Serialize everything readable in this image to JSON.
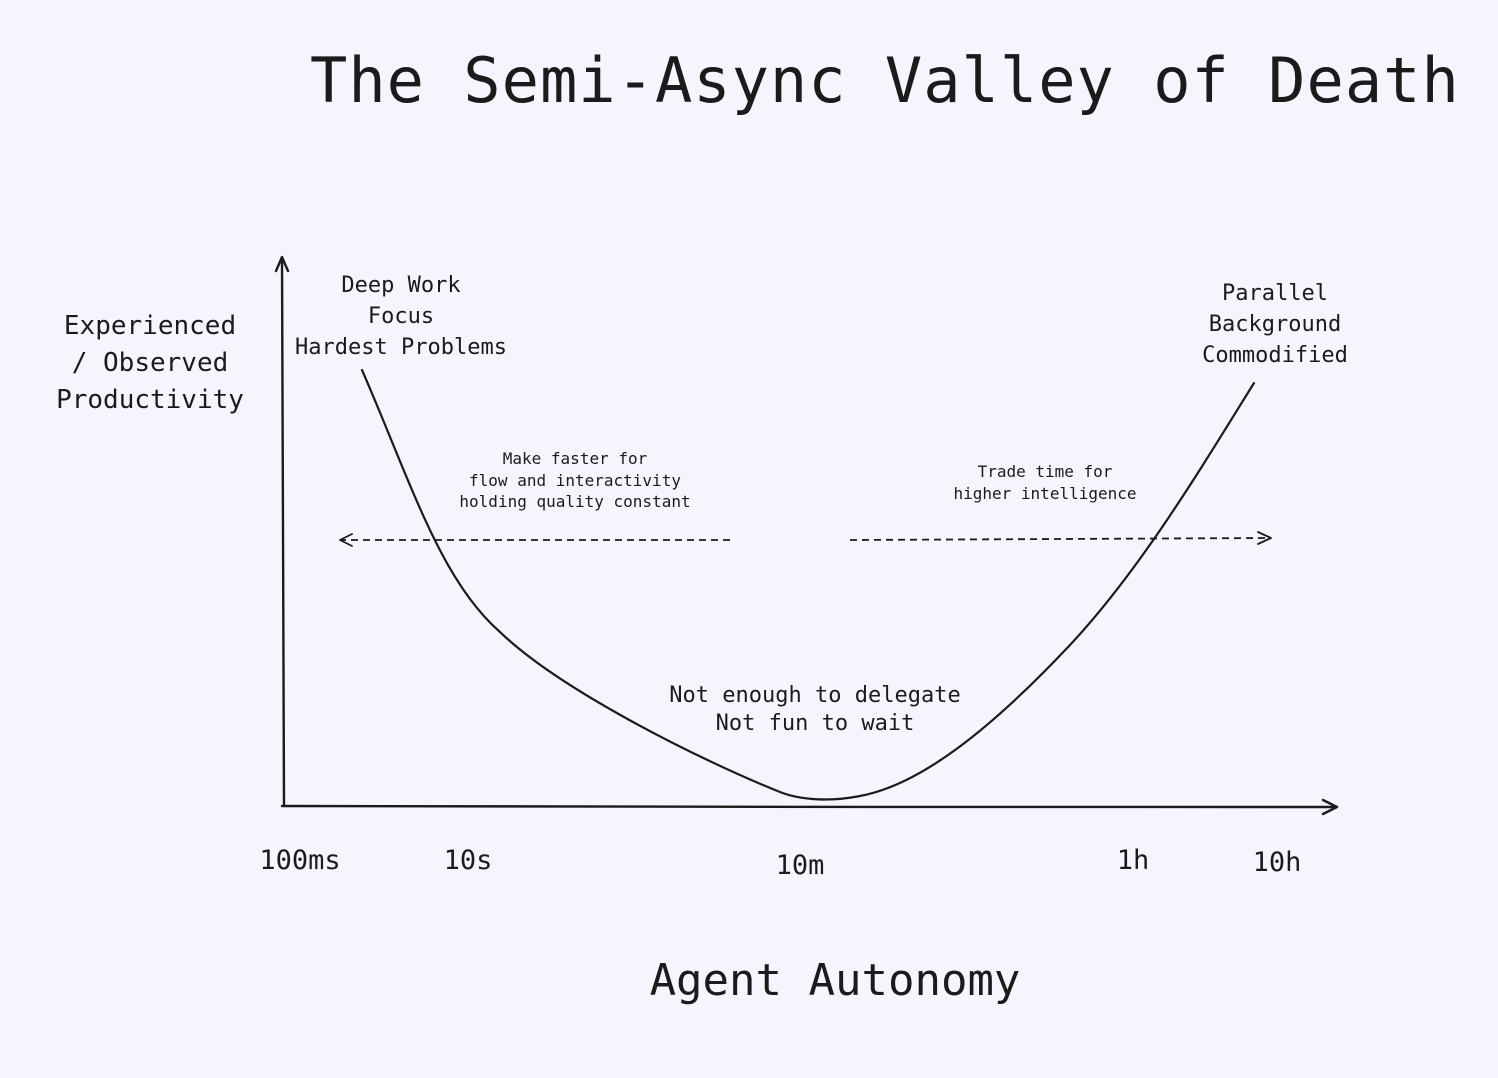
{
  "title": "The Semi-Async Valley of Death",
  "y_axis_label": [
    "Experienced",
    "/ Observed",
    "Productivity"
  ],
  "x_axis_label": "Agent Autonomy",
  "x_ticks": [
    "100ms",
    "10s",
    "10m",
    "1h",
    "10h"
  ],
  "annotations": {
    "left_peak": [
      "Deep Work",
      "Focus",
      "Hardest Problems"
    ],
    "right_peak": [
      "Parallel",
      "Background",
      "Commodified"
    ],
    "valley": [
      "Not enough to delegate",
      "Not fun to wait"
    ],
    "left_arrow": [
      "Make faster for",
      "flow and interactivity",
      "holding quality constant"
    ],
    "right_arrow": [
      "Trade time for",
      "higher intelligence"
    ]
  },
  "colors": {
    "background": "#f4f5fd",
    "ink": "#1b1b1b"
  }
}
